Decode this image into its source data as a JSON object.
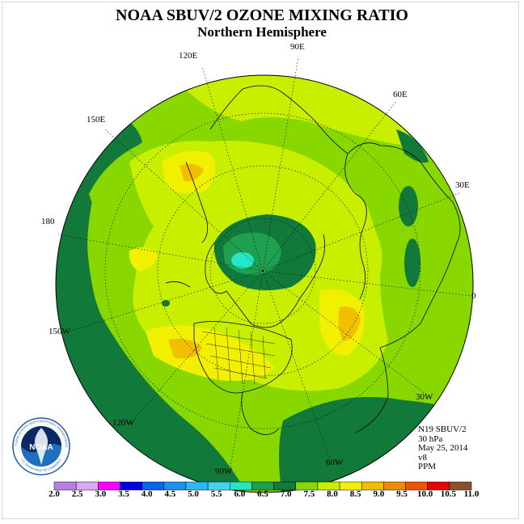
{
  "title": "NOAA SBUV/2 OZONE MIXING RATIO",
  "subtitle": "Northern Hemisphere",
  "longitudes": {
    "lon_90e": "90E",
    "lon_60e": "60E",
    "lon_30e": "30E",
    "lon_0": "0",
    "lon_120e": "120E",
    "lon_150e": "150E",
    "lon_180": "180",
    "lon_150w": "150W",
    "lon_120w": "120W",
    "lon_90w": "90W",
    "lon_60w": "60W",
    "lon_30w": "30W"
  },
  "info": {
    "satellite": "N19 SBUV/2",
    "level": "30 hPa",
    "date": "May 25, 2014",
    "version": "v8",
    "units": "PPM"
  },
  "colorbar": {
    "ticks": [
      "2.0",
      "2.5",
      "3.0",
      "3.5",
      "4.0",
      "4.5",
      "5.0",
      "5.5",
      "6.0",
      "6.5",
      "7.0",
      "7.5",
      "8.0",
      "8.5",
      "9.0",
      "9.5",
      "10.0",
      "10.5",
      "11.0"
    ],
    "colors": [
      "#b87fe0",
      "#d8a8f0",
      "#ff00ff",
      "#0000e0",
      "#0066ee",
      "#1a90f0",
      "#30b8f0",
      "#40d8e8",
      "#22e8c8",
      "#1ea050",
      "#117a3a",
      "#88d800",
      "#c8ee00",
      "#f0f000",
      "#f0c000",
      "#ee8c00",
      "#ee5500",
      "#e80000",
      "#8b5030"
    ]
  },
  "logo": {
    "label": "NOAA",
    "ring_text": "NATIONAL OCEANIC AND ATMOSPHERIC ADMINISTRATION",
    "ring_text_bottom": "U.S. DEPARTMENT OF COMMERCE"
  }
}
